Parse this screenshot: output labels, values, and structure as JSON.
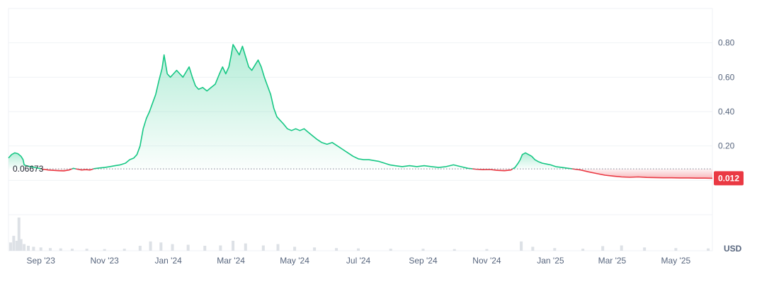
{
  "chart_data": {
    "type": "area",
    "title": "",
    "xlabel": "",
    "ylabel": "",
    "unit_label": "USD",
    "baseline": {
      "value": 0.06673,
      "label": "0.06673"
    },
    "current_price": {
      "value": 0.012,
      "label": "0.012"
    },
    "ylim": [
      -0.2,
      1.0
    ],
    "y_ticks": [
      {
        "value": 0.2,
        "label": "0.20"
      },
      {
        "value": 0.4,
        "label": "0.40"
      },
      {
        "value": 0.6,
        "label": "0.60"
      },
      {
        "value": 0.8,
        "label": "0.80"
      }
    ],
    "x_ticks": [
      {
        "date": "2023-09-01",
        "label": "Sep '23"
      },
      {
        "date": "2023-11-01",
        "label": "Nov '23"
      },
      {
        "date": "2024-01-01",
        "label": "Jan '24"
      },
      {
        "date": "2024-03-01",
        "label": "Mar '24"
      },
      {
        "date": "2024-05-01",
        "label": "May '24"
      },
      {
        "date": "2024-07-01",
        "label": "Jul '24"
      },
      {
        "date": "2024-09-01",
        "label": "Sep '24"
      },
      {
        "date": "2024-11-01",
        "label": "Nov '24"
      },
      {
        "date": "2025-01-01",
        "label": "Jan '25"
      },
      {
        "date": "2025-03-01",
        "label": "Mar '25"
      },
      {
        "date": "2025-05-01",
        "label": "May '25"
      }
    ],
    "xlim": [
      "2023-08-01",
      "2025-06-05"
    ],
    "series": [
      {
        "points": [
          [
            "2023-08-01",
            0.13
          ],
          [
            "2023-08-04",
            0.15
          ],
          [
            "2023-08-07",
            0.16
          ],
          [
            "2023-08-10",
            0.155
          ],
          [
            "2023-08-13",
            0.14
          ],
          [
            "2023-08-15",
            0.12
          ],
          [
            "2023-08-16",
            0.09
          ],
          [
            "2023-08-18",
            0.085
          ],
          [
            "2023-08-22",
            0.08
          ],
          [
            "2023-08-26",
            0.075
          ],
          [
            "2023-08-30",
            0.07
          ],
          [
            "2023-09-03",
            0.065
          ],
          [
            "2023-09-08",
            0.06
          ],
          [
            "2023-09-13",
            0.058
          ],
          [
            "2023-09-18",
            0.056
          ],
          [
            "2023-09-23",
            0.055
          ],
          [
            "2023-09-28",
            0.06
          ],
          [
            "2023-10-02",
            0.07
          ],
          [
            "2023-10-06",
            0.065
          ],
          [
            "2023-10-10",
            0.06
          ],
          [
            "2023-10-14",
            0.062
          ],
          [
            "2023-10-18",
            0.06
          ],
          [
            "2023-10-22",
            0.068
          ],
          [
            "2023-10-27",
            0.072
          ],
          [
            "2023-11-01",
            0.075
          ],
          [
            "2023-11-06",
            0.08
          ],
          [
            "2023-11-11",
            0.085
          ],
          [
            "2023-11-16",
            0.09
          ],
          [
            "2023-11-21",
            0.1
          ],
          [
            "2023-11-25",
            0.12
          ],
          [
            "2023-11-29",
            0.13
          ],
          [
            "2023-12-02",
            0.15
          ],
          [
            "2023-12-05",
            0.2
          ],
          [
            "2023-12-08",
            0.3
          ],
          [
            "2023-12-11",
            0.36
          ],
          [
            "2023-12-14",
            0.4
          ],
          [
            "2023-12-17",
            0.45
          ],
          [
            "2023-12-20",
            0.5
          ],
          [
            "2023-12-23",
            0.58
          ],
          [
            "2023-12-26",
            0.65
          ],
          [
            "2023-12-28",
            0.73
          ],
          [
            "2023-12-31",
            0.62
          ],
          [
            "2024-01-03",
            0.6
          ],
          [
            "2024-01-06",
            0.62
          ],
          [
            "2024-01-09",
            0.64
          ],
          [
            "2024-01-12",
            0.62
          ],
          [
            "2024-01-15",
            0.6
          ],
          [
            "2024-01-18",
            0.63
          ],
          [
            "2024-01-21",
            0.66
          ],
          [
            "2024-01-24",
            0.6
          ],
          [
            "2024-01-27",
            0.55
          ],
          [
            "2024-01-30",
            0.53
          ],
          [
            "2024-02-03",
            0.54
          ],
          [
            "2024-02-07",
            0.52
          ],
          [
            "2024-02-11",
            0.54
          ],
          [
            "2024-02-15",
            0.56
          ],
          [
            "2024-02-19",
            0.62
          ],
          [
            "2024-02-22",
            0.66
          ],
          [
            "2024-02-25",
            0.62
          ],
          [
            "2024-02-28",
            0.66
          ],
          [
            "2024-03-01",
            0.72
          ],
          [
            "2024-03-03",
            0.79
          ],
          [
            "2024-03-06",
            0.76
          ],
          [
            "2024-03-09",
            0.73
          ],
          [
            "2024-03-12",
            0.78
          ],
          [
            "2024-03-15",
            0.72
          ],
          [
            "2024-03-18",
            0.66
          ],
          [
            "2024-03-21",
            0.64
          ],
          [
            "2024-03-24",
            0.67
          ],
          [
            "2024-03-27",
            0.7
          ],
          [
            "2024-03-30",
            0.66
          ],
          [
            "2024-04-02",
            0.6
          ],
          [
            "2024-04-05",
            0.55
          ],
          [
            "2024-04-08",
            0.5
          ],
          [
            "2024-04-11",
            0.42
          ],
          [
            "2024-04-14",
            0.37
          ],
          [
            "2024-04-17",
            0.35
          ],
          [
            "2024-04-20",
            0.33
          ],
          [
            "2024-04-24",
            0.3
          ],
          [
            "2024-04-28",
            0.29
          ],
          [
            "2024-05-02",
            0.3
          ],
          [
            "2024-05-06",
            0.29
          ],
          [
            "2024-05-10",
            0.3
          ],
          [
            "2024-05-14",
            0.28
          ],
          [
            "2024-05-18",
            0.26
          ],
          [
            "2024-05-22",
            0.24
          ],
          [
            "2024-05-27",
            0.22
          ],
          [
            "2024-06-01",
            0.21
          ],
          [
            "2024-06-06",
            0.22
          ],
          [
            "2024-06-11",
            0.2
          ],
          [
            "2024-06-16",
            0.18
          ],
          [
            "2024-06-21",
            0.16
          ],
          [
            "2024-06-26",
            0.14
          ],
          [
            "2024-07-01",
            0.125
          ],
          [
            "2024-07-06",
            0.12
          ],
          [
            "2024-07-11",
            0.12
          ],
          [
            "2024-07-16",
            0.115
          ],
          [
            "2024-07-21",
            0.11
          ],
          [
            "2024-07-26",
            0.1
          ],
          [
            "2024-07-31",
            0.09
          ],
          [
            "2024-08-05",
            0.085
          ],
          [
            "2024-08-12",
            0.08
          ],
          [
            "2024-08-19",
            0.085
          ],
          [
            "2024-08-26",
            0.08
          ],
          [
            "2024-09-02",
            0.085
          ],
          [
            "2024-09-09",
            0.08
          ],
          [
            "2024-09-16",
            0.075
          ],
          [
            "2024-09-23",
            0.08
          ],
          [
            "2024-09-30",
            0.09
          ],
          [
            "2024-10-07",
            0.08
          ],
          [
            "2024-10-14",
            0.07
          ],
          [
            "2024-10-21",
            0.065
          ],
          [
            "2024-10-28",
            0.062
          ],
          [
            "2024-11-04",
            0.063
          ],
          [
            "2024-11-11",
            0.058
          ],
          [
            "2024-11-18",
            0.056
          ],
          [
            "2024-11-24",
            0.06
          ],
          [
            "2024-11-28",
            0.075
          ],
          [
            "2024-12-01",
            0.1
          ],
          [
            "2024-12-03",
            0.12
          ],
          [
            "2024-12-05",
            0.15
          ],
          [
            "2024-12-08",
            0.16
          ],
          [
            "2024-12-11",
            0.15
          ],
          [
            "2024-12-14",
            0.14
          ],
          [
            "2024-12-17",
            0.12
          ],
          [
            "2024-12-20",
            0.11
          ],
          [
            "2024-12-24",
            0.1
          ],
          [
            "2024-12-28",
            0.095
          ],
          [
            "2025-01-01",
            0.09
          ],
          [
            "2025-01-06",
            0.08
          ],
          [
            "2025-01-12",
            0.075
          ],
          [
            "2025-01-18",
            0.07
          ],
          [
            "2025-01-24",
            0.065
          ],
          [
            "2025-01-30",
            0.06
          ],
          [
            "2025-02-06",
            0.05
          ],
          [
            "2025-02-14",
            0.04
          ],
          [
            "2025-02-22",
            0.03
          ],
          [
            "2025-03-02",
            0.025
          ],
          [
            "2025-03-10",
            0.02
          ],
          [
            "2025-03-18",
            0.018
          ],
          [
            "2025-03-26",
            0.02
          ],
          [
            "2025-04-03",
            0.017
          ],
          [
            "2025-04-11",
            0.016
          ],
          [
            "2025-04-19",
            0.015
          ],
          [
            "2025-04-27",
            0.015
          ],
          [
            "2025-05-05",
            0.014
          ],
          [
            "2025-05-13",
            0.014
          ],
          [
            "2025-05-21",
            0.013
          ],
          [
            "2025-05-29",
            0.013
          ],
          [
            "2025-06-05",
            0.012
          ]
        ]
      }
    ],
    "volume": [
      [
        "2023-08-03",
        0.25
      ],
      [
        "2023-08-06",
        0.45
      ],
      [
        "2023-08-09",
        0.3
      ],
      [
        "2023-08-11",
        1.0
      ],
      [
        "2023-08-13",
        0.35
      ],
      [
        "2023-08-16",
        0.2
      ],
      [
        "2023-08-20",
        0.15
      ],
      [
        "2023-08-25",
        0.12
      ],
      [
        "2023-09-01",
        0.1
      ],
      [
        "2023-09-10",
        0.08
      ],
      [
        "2023-09-20",
        0.07
      ],
      [
        "2023-10-01",
        0.06
      ],
      [
        "2023-10-15",
        0.06
      ],
      [
        "2023-11-01",
        0.05
      ],
      [
        "2023-11-20",
        0.06
      ],
      [
        "2023-12-05",
        0.15
      ],
      [
        "2023-12-15",
        0.28
      ],
      [
        "2023-12-25",
        0.25
      ],
      [
        "2024-01-05",
        0.2
      ],
      [
        "2024-01-20",
        0.18
      ],
      [
        "2024-02-05",
        0.15
      ],
      [
        "2024-02-20",
        0.16
      ],
      [
        "2024-03-03",
        0.3
      ],
      [
        "2024-03-15",
        0.22
      ],
      [
        "2024-04-01",
        0.16
      ],
      [
        "2024-04-15",
        0.2
      ],
      [
        "2024-05-01",
        0.12
      ],
      [
        "2024-05-20",
        0.1
      ],
      [
        "2024-06-10",
        0.08
      ],
      [
        "2024-07-01",
        0.07
      ],
      [
        "2024-08-01",
        0.06
      ],
      [
        "2024-09-01",
        0.06
      ],
      [
        "2024-10-01",
        0.05
      ],
      [
        "2024-11-01",
        0.05
      ],
      [
        "2024-12-04",
        0.28
      ],
      [
        "2024-12-15",
        0.12
      ],
      [
        "2025-01-05",
        0.08
      ],
      [
        "2025-02-01",
        0.06
      ],
      [
        "2025-02-20",
        0.14
      ],
      [
        "2025-03-10",
        0.16
      ],
      [
        "2025-04-01",
        0.1
      ],
      [
        "2025-05-01",
        0.08
      ],
      [
        "2025-06-01",
        0.07
      ]
    ],
    "colors": {
      "up": "#16c784",
      "down": "#ea3943",
      "grid": "#eff2f5",
      "baseline": "#7b8190",
      "volume": "#dde1e6",
      "tick_text": "#58667e"
    },
    "grid": true
  }
}
